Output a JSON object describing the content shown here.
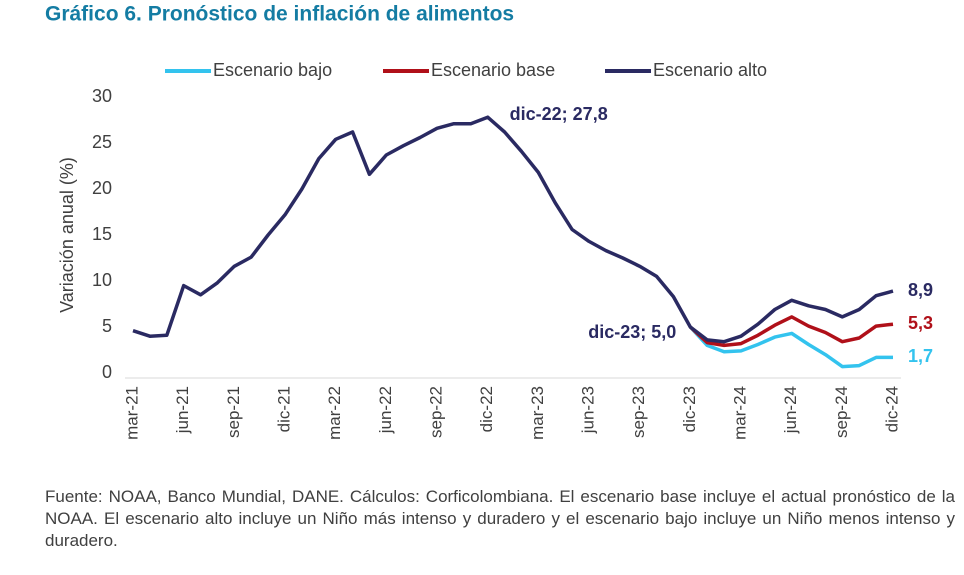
{
  "chart_data": {
    "type": "line",
    "title": "Gráfico 6. Pronóstico de inflación de alimentos",
    "y_label": "Variación anual (%)",
    "source": "Fuente: NOAA, Banco Mundial, DANE. Cálculos: Corficolombiana. El escenario base incluye el actual pronóstico de la NOAA. El escenario alto incluye un Niño más intenso y duradero y el escenario bajo incluye un Niño menos intenso y duradero.",
    "categories": [
      "mar-21",
      null,
      null,
      "jun-21",
      null,
      null,
      "sep-21",
      null,
      null,
      "dic-21",
      null,
      null,
      "mar-22",
      null,
      null,
      "jun-22",
      null,
      null,
      "sep-22",
      null,
      null,
      "dic-22",
      null,
      null,
      "mar-23",
      null,
      null,
      "jun-23",
      null,
      null,
      "sep-23",
      null,
      null,
      "dic-23",
      null,
      null,
      "mar-24",
      null,
      null,
      "jun-24",
      null,
      null,
      "sep-24",
      null,
      null,
      "dic-24"
    ],
    "ylim": [
      0,
      30
    ],
    "yticks": [
      0,
      5,
      10,
      15,
      20,
      25,
      30
    ],
    "legend": "top",
    "series": [
      {
        "name": "Escenario bajo",
        "color": "#33c3ee",
        "values": [
          null,
          null,
          null,
          null,
          null,
          null,
          null,
          null,
          null,
          null,
          null,
          null,
          null,
          null,
          null,
          null,
          null,
          null,
          null,
          null,
          null,
          null,
          null,
          null,
          null,
          null,
          null,
          null,
          null,
          null,
          null,
          null,
          null,
          5.0,
          3.0,
          2.3,
          2.4,
          3.1,
          3.9,
          4.3,
          3.1,
          2.0,
          0.7,
          0.8,
          1.7,
          1.7
        ],
        "value_labels": [
          null,
          null,
          null,
          null,
          null,
          null,
          null,
          null,
          null,
          null,
          null,
          null,
          null,
          null,
          null,
          null,
          null,
          null,
          null,
          null,
          null,
          null,
          null,
          null,
          null,
          null,
          null,
          null,
          null,
          null,
          null,
          null,
          null,
          null,
          null,
          null,
          null,
          null,
          null,
          null,
          null,
          null,
          null,
          null,
          null,
          "1,7"
        ]
      },
      {
        "name": "Escenario base",
        "color": "#b01019",
        "values": [
          null,
          null,
          null,
          null,
          null,
          null,
          null,
          null,
          null,
          null,
          null,
          null,
          null,
          null,
          null,
          null,
          null,
          null,
          null,
          null,
          null,
          null,
          null,
          null,
          null,
          null,
          null,
          null,
          null,
          null,
          null,
          null,
          null,
          5.0,
          3.3,
          3.0,
          3.2,
          4.1,
          5.2,
          6.1,
          5.1,
          4.4,
          3.4,
          3.8,
          5.1,
          5.3
        ],
        "value_labels": [
          null,
          null,
          null,
          null,
          null,
          null,
          null,
          null,
          null,
          null,
          null,
          null,
          null,
          null,
          null,
          null,
          null,
          null,
          null,
          null,
          null,
          null,
          null,
          null,
          null,
          null,
          null,
          null,
          null,
          null,
          null,
          null,
          null,
          null,
          null,
          null,
          null,
          null,
          null,
          null,
          null,
          null,
          null,
          null,
          null,
          "5,3"
        ]
      },
      {
        "name": "Escenario alto",
        "color": "#2a2a62",
        "values": [
          4.6,
          4.0,
          4.1,
          9.5,
          8.5,
          9.8,
          11.6,
          12.6,
          15.0,
          17.2,
          20.0,
          23.3,
          25.4,
          26.2,
          21.6,
          23.7,
          24.7,
          25.6,
          26.6,
          27.1,
          27.1,
          27.8,
          26.2,
          24.1,
          21.8,
          18.5,
          15.6,
          14.3,
          13.3,
          12.5,
          11.6,
          10.5,
          8.3,
          5.0,
          3.6,
          3.4,
          4.0,
          5.3,
          6.9,
          7.9,
          7.3,
          6.9,
          6.1,
          6.9,
          8.4,
          8.9
        ],
        "value_labels": [
          null,
          null,
          null,
          null,
          null,
          null,
          null,
          null,
          null,
          null,
          null,
          null,
          null,
          null,
          null,
          null,
          null,
          null,
          null,
          null,
          null,
          "dic-22; 27,8",
          null,
          null,
          null,
          null,
          null,
          null,
          null,
          null,
          null,
          null,
          null,
          "dic-23; 5,0",
          null,
          null,
          null,
          null,
          null,
          null,
          null,
          null,
          null,
          null,
          null,
          "8,9"
        ]
      }
    ]
  }
}
